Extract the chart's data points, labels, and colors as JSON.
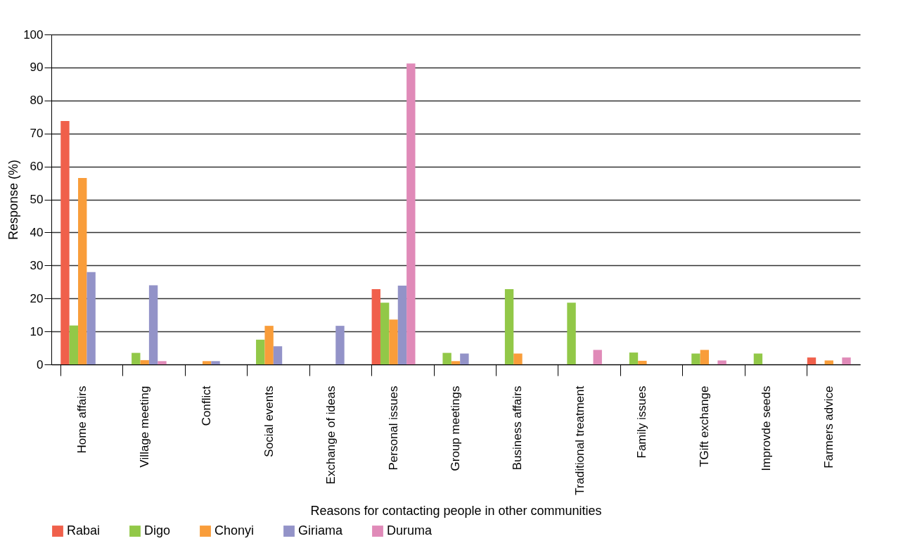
{
  "chart_data": {
    "type": "bar",
    "xlabel": "Reasons for contacting people in other communities",
    "ylabel": "Response (%)",
    "categories": [
      "Home affairs",
      "Village meeting",
      "Conflict",
      "Social events",
      "Exchange of ideas",
      "Personal issues",
      "Group meetings",
      "Business affairs",
      "Traditional treatment",
      "Family issues",
      "TGift exchange",
      "Improvde seeds",
      "Farmers advice"
    ],
    "series": [
      {
        "name": "Rabai",
        "color": "#f0604b",
        "values": [
          73.8,
          0,
          0,
          0,
          0,
          22.8,
          0,
          0,
          0,
          0,
          0,
          0,
          2.1
        ]
      },
      {
        "name": "Digo",
        "color": "#92c848",
        "values": [
          11.8,
          3.5,
          0,
          7.5,
          0,
          18.7,
          3.5,
          22.8,
          18.7,
          3.6,
          3.3,
          3.3,
          0
        ]
      },
      {
        "name": "Chonyi",
        "color": "#f99d3a",
        "values": [
          56.5,
          1.3,
          1,
          11.7,
          0,
          13.6,
          1,
          3.3,
          0,
          1.1,
          4.4,
          0,
          1.2
        ]
      },
      {
        "name": "Giriama",
        "color": "#9393c8",
        "values": [
          28,
          24,
          1,
          5.5,
          11.7,
          23.9,
          3.3,
          0,
          0,
          0,
          0,
          0,
          0
        ]
      },
      {
        "name": "Duruma",
        "color": "#e08ab8",
        "values": [
          0,
          1,
          0,
          0,
          0,
          91.2,
          0,
          0,
          4.4,
          0,
          1.2,
          0,
          2.1
        ]
      }
    ],
    "ylim": [
      0,
      100
    ],
    "yticks": [
      0,
      10,
      20,
      30,
      40,
      50,
      60,
      70,
      80,
      90,
      100
    ],
    "grid": "y",
    "legend": "bottom"
  }
}
